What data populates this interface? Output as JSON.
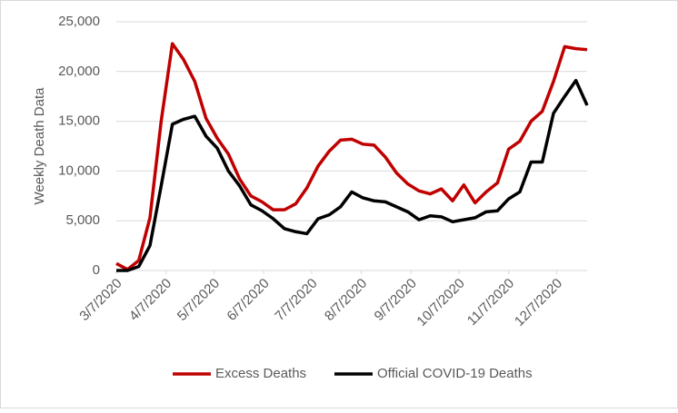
{
  "chart_data": {
    "type": "line",
    "y_label": "Weekly Death Data",
    "x": [
      "3/7/2020",
      "3/14/2020",
      "3/21/2020",
      "3/28/2020",
      "4/4/2020",
      "4/11/2020",
      "4/18/2020",
      "4/25/2020",
      "5/2/2020",
      "5/9/2020",
      "5/16/2020",
      "5/23/2020",
      "5/30/2020",
      "6/6/2020",
      "6/13/2020",
      "6/20/2020",
      "6/27/2020",
      "7/4/2020",
      "7/11/2020",
      "7/18/2020",
      "7/25/2020",
      "8/1/2020",
      "8/8/2020",
      "8/15/2020",
      "8/22/2020",
      "8/29/2020",
      "9/5/2020",
      "9/12/2020",
      "9/19/2020",
      "9/26/2020",
      "10/3/2020",
      "10/10/2020",
      "10/17/2020",
      "10/24/2020",
      "10/31/2020",
      "11/7/2020",
      "11/14/2020",
      "11/21/2020",
      "11/28/2020",
      "12/5/2020",
      "12/12/2020",
      "12/19/2020",
      "12/26/2020"
    ],
    "series": [
      {
        "name": "Excess Deaths",
        "color": "#c00000",
        "values": [
          700,
          100,
          1000,
          5300,
          15000,
          22800,
          21200,
          19000,
          15300,
          13300,
          11700,
          9200,
          7500,
          6900,
          6100,
          6100,
          6700,
          8300,
          10500,
          12000,
          13100,
          13200,
          12700,
          12600,
          11400,
          9800,
          8700,
          8000,
          7700,
          8200,
          7000,
          8600,
          6800,
          7900,
          8800,
          12200,
          13000,
          15000,
          16000,
          19000,
          22500,
          22300,
          22200
        ]
      },
      {
        "name": "Official COVID-19 Deaths",
        "color": "#000000",
        "values": [
          0,
          0,
          400,
          2500,
          8500,
          14700,
          15200,
          15500,
          13500,
          12300,
          10000,
          8500,
          6600,
          6000,
          5200,
          4200,
          3900,
          3700,
          5200,
          5600,
          6400,
          7900,
          7300,
          7000,
          6900,
          6400,
          5900,
          5100,
          5500,
          5400,
          4900,
          5100,
          5300,
          5900,
          6000,
          7200,
          7900,
          10900,
          10900,
          15800,
          17500,
          19100,
          16600
        ]
      }
    ],
    "xlim": [
      "3/7/2020",
      "12/26/2020"
    ],
    "xticks": [
      "3/7/2020",
      "4/7/2020",
      "5/7/2020",
      "6/7/2020",
      "7/7/2020",
      "8/7/2020",
      "9/7/2020",
      "10/7/2020",
      "11/7/2020",
      "12/7/2020"
    ],
    "ylim": [
      0,
      25000
    ],
    "yticks": [
      0,
      {
        "value": 5000,
        "label": "5,000"
      },
      {
        "value": 10000,
        "label": "10,000"
      },
      {
        "value": 15000,
        "label": "15,000"
      },
      {
        "value": 20000,
        "label": "20,000"
      },
      {
        "value": 25000,
        "label": "25,000"
      }
    ],
    "grid": true,
    "legend": "bottom"
  }
}
